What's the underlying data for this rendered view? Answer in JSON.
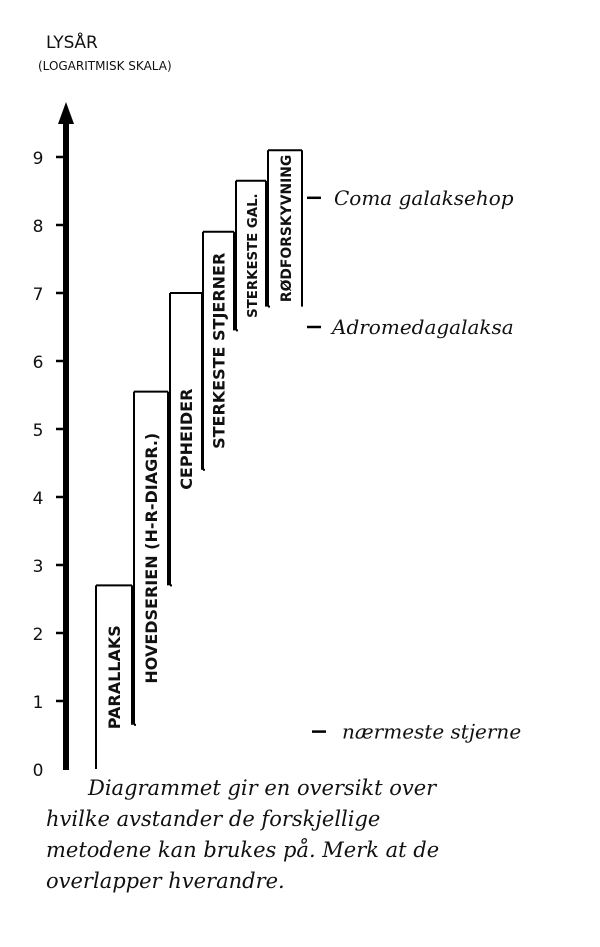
{
  "y_axis": {
    "label": "LYSÅR",
    "sublabel": "(LOGARITMISK SKALA)",
    "ticks": [
      "0",
      "1",
      "2",
      "3",
      "4",
      "5",
      "6",
      "7",
      "8",
      "9"
    ]
  },
  "methods": [
    {
      "label": "PARALLAKS",
      "low": 0,
      "high": 2.7
    },
    {
      "label": "HOVEDSERIEN (H-R-DIAGR.)",
      "low": 0.65,
      "high": 5.55
    },
    {
      "label": "CEPHEIDER",
      "low": 2.7,
      "high": 7.0
    },
    {
      "label": "STERKESTE STJERNER",
      "low": 4.4,
      "high": 7.9
    },
    {
      "label": "STERKESTE GAL.",
      "low": 6.45,
      "high": 8.65
    },
    {
      "label": "RØDFORSKYVNING",
      "low": 6.8,
      "high": 9.1
    }
  ],
  "markers": [
    {
      "label": "Coma galaksehop",
      "value": 8.4
    },
    {
      "label": "Adromedagalaksa",
      "value": 6.5
    },
    {
      "label": "nærmeste stjerne",
      "value": 0.55
    }
  ],
  "caption": [
    "Diagrammet gir en oversikt over",
    "hvilke avstander de forskjellige",
    "metodene kan brukes på. Merk at de",
    "overlapper hverandre."
  ]
}
